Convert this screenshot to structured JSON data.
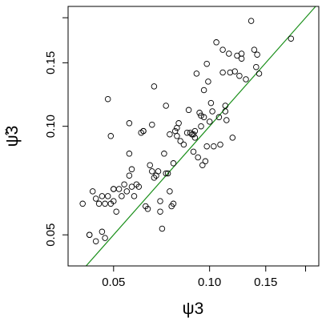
{
  "chart_data": {
    "type": "scatter",
    "title": "",
    "xlabel": "ψ3",
    "ylabel": "ψ̃3",
    "x_scale": "log",
    "y_scale": "log",
    "xlim": [
      0.036,
      0.22
    ],
    "ylim": [
      0.041,
      0.215
    ],
    "x_ticks": [
      0.05,
      0.1,
      0.15,
      0.2
    ],
    "x_tick_labels": [
      "0.05",
      "0.10",
      "0.15",
      ""
    ],
    "y_ticks": [
      0.05,
      0.1,
      0.15,
      0.2
    ],
    "y_tick_labels": [
      "0.05",
      "0.10",
      "0.15",
      ""
    ],
    "grid": false,
    "reference_line": {
      "type": "identity",
      "color": "#1a8f1a"
    },
    "marker": {
      "shape": "open-circle",
      "color": "#000000"
    },
    "series": [
      {
        "points": [
          [
            0.04,
            0.061
          ],
          [
            0.042,
            0.05
          ],
          [
            0.042,
            0.05
          ],
          [
            0.043,
            0.066
          ],
          [
            0.044,
            0.063
          ],
          [
            0.044,
            0.048
          ],
          [
            0.045,
            0.061
          ],
          [
            0.046,
            0.064
          ],
          [
            0.046,
            0.051
          ],
          [
            0.047,
            0.061
          ],
          [
            0.047,
            0.049
          ],
          [
            0.048,
            0.064
          ],
          [
            0.048,
            0.119
          ],
          [
            0.049,
            0.061
          ],
          [
            0.049,
            0.094
          ],
          [
            0.05,
            0.067
          ],
          [
            0.05,
            0.067
          ],
          [
            0.05,
            0.062
          ],
          [
            0.051,
            0.058
          ],
          [
            0.052,
            0.067
          ],
          [
            0.053,
            0.064
          ],
          [
            0.054,
            0.069
          ],
          [
            0.055,
            0.066
          ],
          [
            0.056,
            0.073
          ],
          [
            0.056,
            0.084
          ],
          [
            0.056,
            0.102
          ],
          [
            0.057,
            0.068
          ],
          [
            0.057,
            0.076
          ],
          [
            0.058,
            0.064
          ],
          [
            0.059,
            0.069
          ],
          [
            0.06,
            0.068
          ],
          [
            0.061,
            0.096
          ],
          [
            0.062,
            0.097
          ],
          [
            0.062,
            0.097
          ],
          [
            0.063,
            0.06
          ],
          [
            0.064,
            0.059
          ],
          [
            0.065,
            0.078
          ],
          [
            0.066,
            0.075
          ],
          [
            0.066,
            0.101
          ],
          [
            0.067,
            0.129
          ],
          [
            0.067,
            0.072
          ],
          [
            0.068,
            0.073
          ],
          [
            0.069,
            0.075
          ],
          [
            0.07,
            0.058
          ],
          [
            0.07,
            0.062
          ],
          [
            0.071,
            0.052
          ],
          [
            0.072,
            0.084
          ],
          [
            0.073,
            0.114
          ],
          [
            0.073,
            0.074
          ],
          [
            0.074,
            0.074
          ],
          [
            0.075,
            0.066
          ],
          [
            0.075,
            0.095
          ],
          [
            0.076,
            0.06
          ],
          [
            0.077,
            0.061
          ],
          [
            0.077,
            0.079
          ],
          [
            0.078,
            0.097
          ],
          [
            0.079,
            0.099
          ],
          [
            0.079,
            0.094
          ],
          [
            0.08,
            0.102
          ],
          [
            0.081,
            0.091
          ],
          [
            0.083,
            0.089
          ],
          [
            0.085,
            0.096
          ],
          [
            0.086,
            0.111
          ],
          [
            0.087,
            0.096
          ],
          [
            0.088,
            0.095
          ],
          [
            0.089,
            0.085
          ],
          [
            0.089,
            0.095
          ],
          [
            0.09,
            0.097
          ],
          [
            0.09,
            0.093
          ],
          [
            0.091,
            0.14
          ],
          [
            0.092,
            0.082
          ],
          [
            0.093,
            0.109
          ],
          [
            0.094,
            0.107
          ],
          [
            0.094,
            0.1
          ],
          [
            0.095,
            0.078
          ],
          [
            0.096,
            0.106
          ],
          [
            0.096,
            0.126
          ],
          [
            0.097,
            0.08
          ],
          [
            0.098,
            0.088
          ],
          [
            0.098,
            0.149
          ],
          [
            0.099,
            0.133
          ],
          [
            0.1,
            0.103
          ],
          [
            0.101,
            0.116
          ],
          [
            0.102,
            0.11
          ],
          [
            0.103,
            0.088
          ],
          [
            0.105,
            0.171
          ],
          [
            0.107,
            0.106
          ],
          [
            0.108,
            0.089
          ],
          [
            0.11,
            0.163
          ],
          [
            0.11,
            0.141
          ],
          [
            0.112,
            0.11
          ],
          [
            0.112,
            0.114
          ],
          [
            0.113,
            0.104
          ],
          [
            0.115,
            0.159
          ],
          [
            0.116,
            0.141
          ],
          [
            0.118,
            0.093
          ],
          [
            0.12,
            0.142
          ],
          [
            0.122,
            0.157
          ],
          [
            0.124,
            0.138
          ],
          [
            0.126,
            0.159
          ],
          [
            0.126,
            0.154
          ],
          [
            0.13,
            0.135
          ],
          [
            0.135,
            0.196
          ],
          [
            0.138,
            0.163
          ],
          [
            0.14,
            0.146
          ],
          [
            0.141,
            0.158
          ],
          [
            0.143,
            0.14
          ],
          [
            0.18,
            0.175
          ]
        ]
      }
    ]
  }
}
